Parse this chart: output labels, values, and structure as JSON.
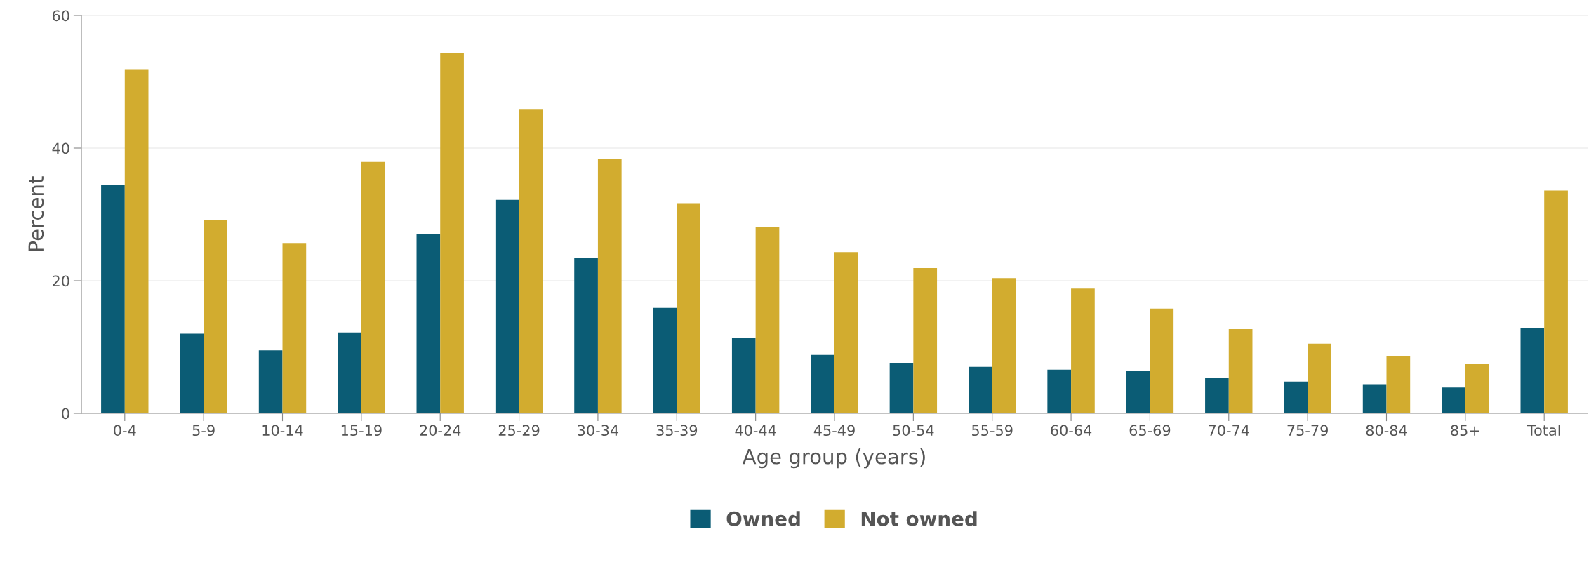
{
  "chart_data": {
    "type": "bar",
    "xlabel": "Age group (years)",
    "ylabel": "Percent",
    "categories": [
      "0-4",
      "5-9",
      "10-14",
      "15-19",
      "20-24",
      "25-29",
      "30-34",
      "35-39",
      "40-44",
      "45-49",
      "50-54",
      "55-59",
      "60-64",
      "65-69",
      "70-74",
      "75-79",
      "80-84",
      "85+",
      "Total"
    ],
    "series": [
      {
        "name": "Owned",
        "color": "#0b5c75",
        "values": [
          34.5,
          12.0,
          9.5,
          12.2,
          27.0,
          32.2,
          23.5,
          15.9,
          11.4,
          8.8,
          7.5,
          7.0,
          6.6,
          6.4,
          5.4,
          4.8,
          4.4,
          3.9,
          12.8
        ]
      },
      {
        "name": "Not owned",
        "color": "#d2ac2f",
        "values": [
          51.8,
          29.1,
          25.7,
          37.9,
          54.3,
          45.8,
          38.3,
          31.7,
          28.1,
          24.3,
          21.9,
          20.4,
          18.8,
          15.8,
          12.7,
          10.5,
          8.6,
          7.4,
          33.6
        ]
      }
    ],
    "ylim": [
      0,
      60
    ],
    "yticks": [
      0,
      20,
      40,
      60
    ],
    "grid": "y",
    "legend": "bottom"
  }
}
